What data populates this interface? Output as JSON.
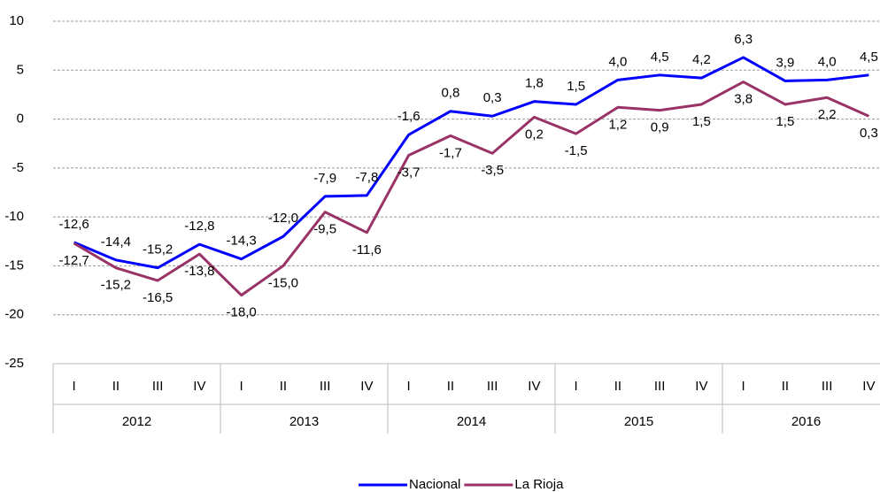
{
  "chart_data": {
    "type": "line",
    "categories": [
      "I",
      "II",
      "III",
      "IV",
      "I",
      "II",
      "III",
      "IV",
      "I",
      "II",
      "III",
      "IV",
      "I",
      "II",
      "III",
      "IV",
      "I",
      "II",
      "III",
      "IV"
    ],
    "category_groups": [
      "2012",
      "2013",
      "2014",
      "2015",
      "2016"
    ],
    "series": [
      {
        "name": "Nacional",
        "color": "#0000ff",
        "values": [
          -12.6,
          -14.4,
          -15.2,
          -12.8,
          -14.3,
          -12.0,
          -7.9,
          -7.8,
          -1.6,
          0.8,
          0.3,
          1.8,
          1.5,
          4.0,
          4.5,
          4.2,
          6.3,
          3.9,
          4.0,
          4.5
        ],
        "value_labels": [
          "-12,6",
          "-14,4",
          "-15,2",
          "-12,8",
          "-14,3",
          "-12,0",
          "-7,9",
          "-7,8",
          "-1,6",
          "0,8",
          "0,3",
          "1,8",
          "1,5",
          "4,0",
          "4,5",
          "4,2",
          "6,3",
          "3,9",
          "4,0",
          "4,5"
        ]
      },
      {
        "name": "La Rioja",
        "color": "#993366",
        "values": [
          -12.7,
          -15.2,
          -16.5,
          -13.8,
          -18.0,
          -15.0,
          -9.5,
          -11.6,
          -3.7,
          -1.7,
          -3.5,
          0.2,
          -1.5,
          1.2,
          0.9,
          1.5,
          3.8,
          1.5,
          2.2,
          0.3
        ],
        "value_labels": [
          "-12,7",
          "-15,2",
          "-16,5",
          "-13,8",
          "-18,0",
          "-15,0",
          "-9,5",
          "-11,6",
          "-3,7",
          "-1,7",
          "-3,5",
          "0,2",
          "-1,5",
          "1,2",
          "0,9",
          "1,5",
          "3,8",
          "1,5",
          "2,2",
          "0,3"
        ]
      }
    ],
    "ylim": [
      -25,
      10
    ],
    "yticks": [
      -25,
      -20,
      -15,
      -10,
      -5,
      0,
      5,
      10
    ],
    "grid": true,
    "legend": "bottom"
  }
}
